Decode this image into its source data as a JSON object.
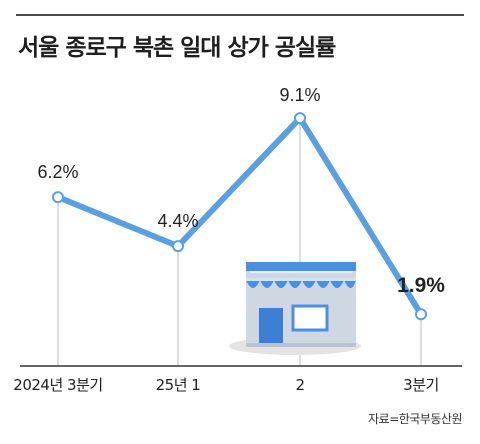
{
  "title": "서울 종로구 북촌 일대 상가 공실률",
  "source": "자료=한국부동산원",
  "colors": {
    "line": "#5aa0e0",
    "marker_fill": "#ffffff",
    "guide": "#bbbbbb",
    "axis": "#333333"
  },
  "chart_data": {
    "type": "line",
    "title": "서울 종로구 북촌 일대 상가 공실률",
    "xlabel": "",
    "ylabel": "",
    "categories": [
      "2024년 3분기",
      "25년 1",
      "2",
      "3분기"
    ],
    "series": [
      {
        "values": [
          6.2,
          4.4,
          9.1,
          1.9
        ]
      }
    ],
    "data_labels": [
      "6.2%",
      "4.4%",
      "9.1%",
      "1.9%"
    ],
    "highlight_last": true,
    "ylim": [
      0,
      10.5
    ],
    "grid": false,
    "legend": "none",
    "illustration": "store-icon"
  }
}
